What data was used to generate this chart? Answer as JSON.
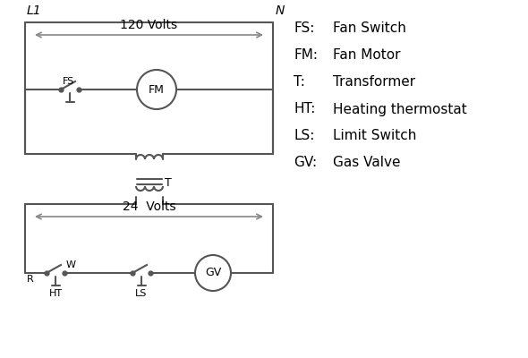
{
  "bg_color": "#ffffff",
  "line_color": "#555555",
  "text_color": "#000000",
  "legend": [
    [
      "FS:",
      "Fan Switch"
    ],
    [
      "FM:",
      "Fan Motor"
    ],
    [
      "T:",
      "Transformer"
    ],
    [
      "HT:",
      "Heating thermostat"
    ],
    [
      "LS:",
      "Limit Switch"
    ],
    [
      "GV:",
      "Gas Valve"
    ]
  ],
  "volts_120": "120 Volts",
  "volts_24": "24  Volts",
  "L1_label": "L1",
  "N_label": "N",
  "T_label": "T",
  "FS_label": "FS",
  "FM_label": "FM",
  "R_label": "R",
  "W_label": "W",
  "HT_label": "HT",
  "LS_label": "LS",
  "GV_label": "GV"
}
